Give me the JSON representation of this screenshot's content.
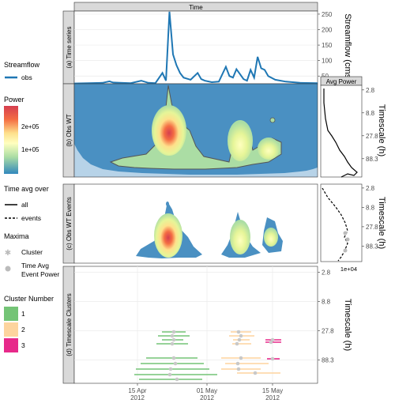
{
  "chart_data": [
    {
      "type": "line",
      "panel": "(a) Time series",
      "strip_title": "Time",
      "ylabel": "Streamflow (cms)",
      "yticks": [
        50,
        100,
        150,
        200,
        250
      ],
      "ylim": [
        25,
        260
      ],
      "xlim": [
        "2012-03-25",
        "2012-06-02"
      ],
      "series": [
        {
          "name": "obs",
          "color": "#1f77b4",
          "x": [
            "2012-03-25",
            "2012-03-29",
            "2012-04-02",
            "2012-04-04",
            "2012-04-05",
            "2012-04-07",
            "2012-04-10",
            "2012-04-13",
            "2012-04-15",
            "2012-04-17",
            "2012-04-19",
            "2012-04-20",
            "2012-04-21",
            "2012-04-22",
            "2012-04-23",
            "2012-04-24",
            "2012-04-25",
            "2012-04-27",
            "2012-04-29",
            "2012-04-30",
            "2012-05-01",
            "2012-05-03",
            "2012-05-05",
            "2012-05-07",
            "2012-05-08",
            "2012-05-09",
            "2012-05-10",
            "2012-05-12",
            "2012-05-13",
            "2012-05-14",
            "2012-05-15",
            "2012-05-16",
            "2012-05-17",
            "2012-05-18",
            "2012-05-19",
            "2012-05-21",
            "2012-05-24",
            "2012-05-28",
            "2012-06-02"
          ],
          "y": [
            26,
            27,
            28,
            33,
            29,
            28,
            27,
            35,
            28,
            27,
            60,
            35,
            258,
            120,
            85,
            60,
            45,
            38,
            60,
            40,
            35,
            30,
            32,
            80,
            50,
            45,
            72,
            40,
            35,
            70,
            45,
            112,
            75,
            70,
            50,
            38,
            32,
            28,
            27
          ]
        }
      ]
    },
    {
      "type": "heatmap",
      "panel": "(b) Obs WT",
      "ylabel": "Timescale (h)",
      "yticks": [
        "2.8",
        "8.8",
        "27.8",
        "88.3"
      ],
      "colorbar": {
        "title": "Power",
        "ticks": [
          "2e+05",
          "1e+05"
        ]
      }
    },
    {
      "type": "line",
      "panel": "Avg Power",
      "strip_title": "Avg Power",
      "ylabel": "Timescale (h)",
      "yticks": [
        "2.8",
        "8.8",
        "27.8",
        "88.3"
      ]
    },
    {
      "type": "heatmap",
      "panel": "(c) Obs WT Events",
      "ylabel": "Timescale (h)",
      "yticks": [
        "2.8",
        "8.8",
        "27.8",
        "88.3"
      ],
      "extra_tick": "1e+04"
    },
    {
      "type": "scatter",
      "panel": "(d) Timescale Clusters",
      "ylabel": "Timescale (h)",
      "yticks": [
        "2.8",
        "8.8",
        "27.8",
        "88.3"
      ],
      "xticks": [
        "15 Apr\n2012",
        "01 May\n2012",
        "15 May\n2012"
      ],
      "clusters": [
        {
          "id": "1",
          "color": "#74c476"
        },
        {
          "id": "2",
          "color": "#fdd49e"
        },
        {
          "id": "3",
          "color": "#e7298a"
        }
      ]
    }
  ],
  "legends": {
    "streamflow": {
      "title": "Streamflow",
      "item": "obs"
    },
    "power": {
      "title": "Power",
      "high": "2e+05",
      "low": "1e+05"
    },
    "timeavg": {
      "title": "Time avg over",
      "all": "all",
      "events": "events"
    },
    "maxima": {
      "title": "Maxima",
      "cluster": "Cluster",
      "event_line1": "Time Avg",
      "event_line2": "Event Power"
    },
    "clusters": {
      "title": "Cluster Number",
      "c1": "1",
      "c2": "2",
      "c3": "3"
    }
  }
}
